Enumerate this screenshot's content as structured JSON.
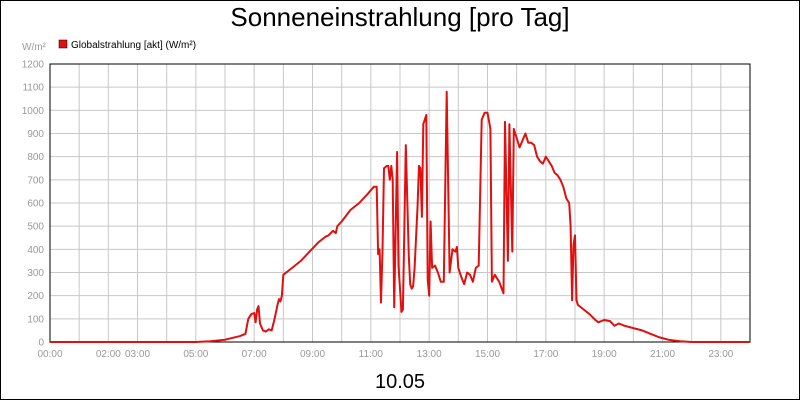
{
  "chart_data": {
    "type": "line",
    "title": "Sonneneinstrahlung [pro Tag]",
    "ylabel": "W/m²",
    "date_label": "10.05",
    "ylim": [
      0,
      1200
    ],
    "xlim": [
      0,
      24
    ],
    "y_ticks": [
      "0",
      "100",
      "200",
      "300",
      "400",
      "500",
      "600",
      "700",
      "800",
      "900",
      "1000",
      "1100",
      "1200"
    ],
    "x_ticks": [
      "00:00",
      "02:00",
      "03:00",
      "05:00",
      "07:00",
      "09:00",
      "11:00",
      "13:00",
      "15:00",
      "17:00",
      "19:00",
      "21:00",
      "23:00"
    ],
    "grid": true,
    "legend_position": "top-left",
    "series": [
      {
        "name": "Globalstrahlung [akt] (W/m²)",
        "color": "#e01010",
        "points": [
          [
            0.0,
            0
          ],
          [
            5.0,
            0
          ],
          [
            5.5,
            3
          ],
          [
            6.0,
            10
          ],
          [
            6.5,
            25
          ],
          [
            6.7,
            35
          ],
          [
            6.8,
            100
          ],
          [
            6.9,
            120
          ],
          [
            7.0,
            125
          ],
          [
            7.05,
            85
          ],
          [
            7.1,
            140
          ],
          [
            7.15,
            155
          ],
          [
            7.2,
            80
          ],
          [
            7.3,
            50
          ],
          [
            7.4,
            45
          ],
          [
            7.5,
            55
          ],
          [
            7.6,
            50
          ],
          [
            7.7,
            100
          ],
          [
            7.8,
            160
          ],
          [
            7.85,
            185
          ],
          [
            7.9,
            175
          ],
          [
            7.95,
            200
          ],
          [
            8.0,
            290
          ],
          [
            8.3,
            320
          ],
          [
            8.6,
            350
          ],
          [
            8.9,
            390
          ],
          [
            9.2,
            430
          ],
          [
            9.45,
            455
          ],
          [
            9.55,
            460
          ],
          [
            9.7,
            480
          ],
          [
            9.8,
            470
          ],
          [
            9.85,
            500
          ],
          [
            10.0,
            520
          ],
          [
            10.3,
            570
          ],
          [
            10.6,
            600
          ],
          [
            10.9,
            640
          ],
          [
            11.1,
            670
          ],
          [
            11.2,
            670
          ],
          [
            11.25,
            380
          ],
          [
            11.3,
            400
          ],
          [
            11.35,
            170
          ],
          [
            11.4,
            395
          ],
          [
            11.45,
            750
          ],
          [
            11.55,
            760
          ],
          [
            11.6,
            760
          ],
          [
            11.65,
            700
          ],
          [
            11.7,
            760
          ],
          [
            11.75,
            700
          ],
          [
            11.8,
            150
          ],
          [
            11.9,
            820
          ],
          [
            11.95,
            330
          ],
          [
            12.05,
            130
          ],
          [
            12.1,
            140
          ],
          [
            12.15,
            500
          ],
          [
            12.2,
            850
          ],
          [
            12.3,
            370
          ],
          [
            12.35,
            250
          ],
          [
            12.4,
            230
          ],
          [
            12.45,
            240
          ],
          [
            12.5,
            320
          ],
          [
            12.6,
            580
          ],
          [
            12.65,
            760
          ],
          [
            12.7,
            750
          ],
          [
            12.75,
            540
          ],
          [
            12.8,
            940
          ],
          [
            12.85,
            960
          ],
          [
            12.9,
            980
          ],
          [
            12.95,
            270
          ],
          [
            13.0,
            200
          ],
          [
            13.05,
            520
          ],
          [
            13.1,
            320
          ],
          [
            13.2,
            330
          ],
          [
            13.3,
            300
          ],
          [
            13.4,
            260
          ],
          [
            13.5,
            260
          ],
          [
            13.6,
            1080
          ],
          [
            13.7,
            300
          ],
          [
            13.8,
            400
          ],
          [
            13.9,
            390
          ],
          [
            13.95,
            410
          ],
          [
            14.0,
            320
          ],
          [
            14.1,
            280
          ],
          [
            14.2,
            250
          ],
          [
            14.3,
            300
          ],
          [
            14.4,
            290
          ],
          [
            14.5,
            260
          ],
          [
            14.6,
            320
          ],
          [
            14.7,
            330
          ],
          [
            14.8,
            960
          ],
          [
            14.9,
            990
          ],
          [
            15.0,
            990
          ],
          [
            15.1,
            920
          ],
          [
            15.15,
            260
          ],
          [
            15.25,
            290
          ],
          [
            15.4,
            260
          ],
          [
            15.55,
            210
          ],
          [
            15.6,
            950
          ],
          [
            15.7,
            350
          ],
          [
            15.75,
            940
          ],
          [
            15.85,
            390
          ],
          [
            15.9,
            920
          ],
          [
            15.95,
            900
          ],
          [
            16.0,
            880
          ],
          [
            16.1,
            840
          ],
          [
            16.2,
            870
          ],
          [
            16.3,
            900
          ],
          [
            16.4,
            860
          ],
          [
            16.5,
            860
          ],
          [
            16.6,
            850
          ],
          [
            16.7,
            800
          ],
          [
            16.8,
            780
          ],
          [
            16.9,
            770
          ],
          [
            17.0,
            800
          ],
          [
            17.1,
            780
          ],
          [
            17.2,
            760
          ],
          [
            17.3,
            730
          ],
          [
            17.4,
            720
          ],
          [
            17.5,
            700
          ],
          [
            17.6,
            670
          ],
          [
            17.7,
            620
          ],
          [
            17.8,
            600
          ],
          [
            17.85,
            500
          ],
          [
            17.9,
            180
          ],
          [
            17.95,
            420
          ],
          [
            18.0,
            460
          ],
          [
            18.05,
            180
          ],
          [
            18.1,
            160
          ],
          [
            18.3,
            140
          ],
          [
            18.5,
            120
          ],
          [
            18.7,
            95
          ],
          [
            18.8,
            85
          ],
          [
            19.0,
            95
          ],
          [
            19.2,
            90
          ],
          [
            19.35,
            70
          ],
          [
            19.5,
            80
          ],
          [
            19.7,
            70
          ],
          [
            20.0,
            60
          ],
          [
            20.3,
            50
          ],
          [
            20.6,
            35
          ],
          [
            20.9,
            20
          ],
          [
            21.2,
            10
          ],
          [
            21.6,
            3
          ],
          [
            22.0,
            0
          ],
          [
            24.0,
            0
          ]
        ]
      }
    ]
  }
}
